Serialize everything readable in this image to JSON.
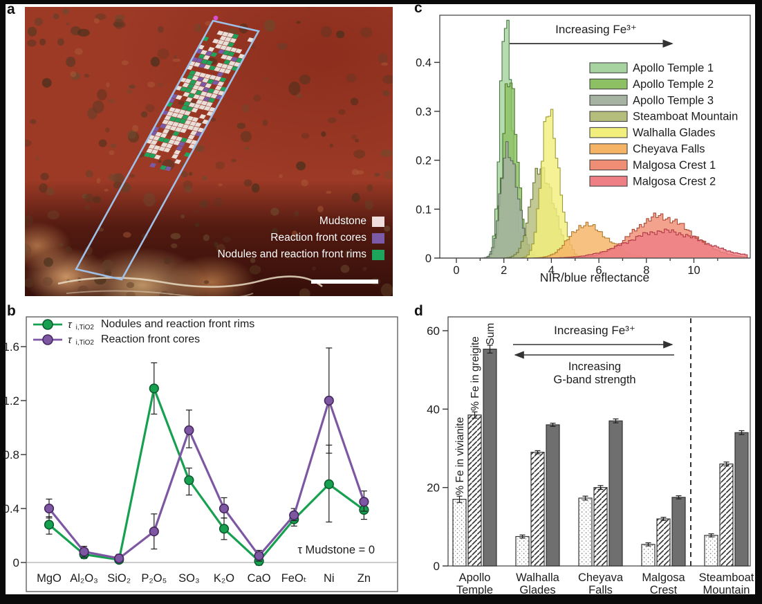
{
  "panels": {
    "a_label": "a",
    "b_label": "b",
    "c_label": "c",
    "d_label": "d"
  },
  "panel_a": {
    "legend": [
      {
        "label": "Mudstone",
        "color": "#efdedb"
      },
      {
        "label": "Reaction front cores",
        "color": "#7b5ba8"
      },
      {
        "label": "Nodules and reaction front rims",
        "color": "#1ea55c"
      }
    ],
    "rock_colors": {
      "base": "#9c3a26",
      "dark_spot": "#54351f",
      "deep_shadow": "#3c120c",
      "light_rock": "#d29a68"
    },
    "outline_color": "#9fc0e8",
    "grid_colors": {
      "mudstone": "#eadfd8",
      "rim": "#22a35d",
      "core": "#7b5ba8"
    }
  },
  "chart_data": [
    {
      "id": "b",
      "type": "line",
      "categories": [
        "MgO",
        "Al₂O₃",
        "SiO₂",
        "P₂O₅",
        "SO₃",
        "K₂O",
        "CaO",
        "FeOₜ",
        "Ni",
        "Zn"
      ],
      "yticks": [
        0,
        0.4,
        0.8,
        1.2,
        1.6
      ],
      "ylim": [
        -0.1,
        1.82
      ],
      "annotation": "τ Mudstone = 0",
      "series": [
        {
          "name": "Nodules and reaction front rims",
          "legend": {
            "tau": "τ",
            "sub": "i,TiO2",
            "label": "Nodules and reaction front rims"
          },
          "color": "#16a04f",
          "edge": "#0b5a2e",
          "values": [
            0.28,
            0.06,
            0.02,
            1.29,
            0.61,
            0.25,
            0.01,
            0.32,
            0.58,
            0.39
          ],
          "err_lo": [
            0.21,
            0.03,
            0.0,
            1.1,
            0.5,
            0.17,
            -0.02,
            0.27,
            0.3,
            0.32
          ],
          "err_hi": [
            0.34,
            0.1,
            0.04,
            1.48,
            0.7,
            0.33,
            0.04,
            0.37,
            0.87,
            0.46
          ]
        },
        {
          "name": "Reaction front cores",
          "legend": {
            "tau": "τ",
            "sub": "i,TiO2",
            "label": "Reaction front cores"
          },
          "color": "#7e57a3",
          "edge": "#45265f",
          "values": [
            0.4,
            0.08,
            0.03,
            0.23,
            0.98,
            0.4,
            0.05,
            0.35,
            1.2,
            0.45
          ],
          "err_lo": [
            0.33,
            0.04,
            0.01,
            0.1,
            0.85,
            0.33,
            0.01,
            0.31,
            0.81,
            0.38
          ],
          "err_hi": [
            0.47,
            0.12,
            0.06,
            0.36,
            1.13,
            0.48,
            0.09,
            0.4,
            1.59,
            0.53
          ]
        }
      ]
    },
    {
      "id": "c",
      "type": "area",
      "xlabel": "NIR/blue reflectance",
      "annotation": "Increasing Fe³⁺",
      "xticks": [
        0,
        2,
        4,
        6,
        8,
        10
      ],
      "xlim": [
        -0.7,
        12.3
      ],
      "yticks": [
        0,
        0.1,
        0.2,
        0.3,
        0.4
      ],
      "ylim": [
        0,
        0.5
      ],
      "legend_position": "upper right",
      "series": [
        {
          "name": "Apollo Temple 1",
          "fill": "#a7d3a0",
          "stroke": "#44793f",
          "peak": 2.0,
          "height": 0.475,
          "sigma_l": 0.22,
          "sigma_r": 0.3
        },
        {
          "name": "Apollo Temple 2",
          "fill": "#8cc063",
          "stroke": "#4a7a2a",
          "peak": 2.15,
          "height": 0.37,
          "sigma_l": 0.25,
          "sigma_r": 0.35
        },
        {
          "name": "Apollo Temple 3",
          "fill": "#a6b2a2",
          "stroke": "#5c6b5c",
          "peak": 2.1,
          "height": 0.23,
          "sigma_l": 0.28,
          "sigma_r": 0.42
        },
        {
          "name": "Steamboat Mountain",
          "fill": "#b4bd7c",
          "stroke": "#6a7a3a",
          "peak": 3.5,
          "height": 0.185,
          "sigma_l": 0.42,
          "sigma_r": 0.55
        },
        {
          "name": "Walhalla Glades",
          "fill": "#f2ef7d",
          "stroke": "#9a9a35",
          "peak": 3.85,
          "height": 0.295,
          "sigma_l": 0.32,
          "sigma_r": 0.42
        },
        {
          "name": "Cheyava Falls",
          "fill": "#f5b366",
          "stroke": "#b07a2a",
          "peak": 5.35,
          "height": 0.068,
          "sigma_l": 0.65,
          "sigma_r": 0.95
        },
        {
          "name": "Malgosa Crest 1",
          "fill": "#ef8e74",
          "stroke": "#ad4a34",
          "peak": 8.5,
          "height": 0.085,
          "sigma_l": 1.15,
          "sigma_r": 1.35
        },
        {
          "name": "Malgosa Crest 2",
          "fill": "#ee7f85",
          "stroke": "#b03a44",
          "peak": 8.65,
          "height": 0.055,
          "sigma_l": 1.5,
          "sigma_r": 1.7
        }
      ]
    },
    {
      "id": "d",
      "type": "bar",
      "categories": [
        [
          "Apollo",
          "Temple"
        ],
        [
          "Walhalla",
          "Glades"
        ],
        [
          "Cheyava",
          "Falls"
        ],
        [
          "Malgosa",
          "Crest"
        ],
        [
          "Steamboat",
          "Mountain"
        ]
      ],
      "yticks": [
        0,
        20,
        40,
        60
      ],
      "ylim": [
        0,
        63
      ],
      "annotation_top": "Increasing Fe³⁺",
      "annotation_bottom": "Increasing\nG-band strength",
      "divider_after_category": 3,
      "series": [
        {
          "name": "% Fe in vivianite",
          "pattern": "dots",
          "color": "#ffffff",
          "values": [
            17,
            7.5,
            17.3,
            5.5,
            7.8
          ],
          "err": [
            0.8,
            0.4,
            0.5,
            0.4,
            0.4
          ]
        },
        {
          "name": "% Fe in greigite",
          "pattern": "hatch",
          "color": "#ffffff",
          "values": [
            38.5,
            29,
            20,
            12,
            26
          ],
          "err": [
            0.8,
            0.4,
            0.5,
            0.4,
            0.5
          ]
        },
        {
          "name": "Sum",
          "pattern": "solid",
          "color": "#6f6f6f",
          "values": [
            55.3,
            36,
            37,
            17.5,
            34
          ],
          "err": [
            1.0,
            0.4,
            0.5,
            0.4,
            0.5
          ]
        }
      ]
    }
  ]
}
